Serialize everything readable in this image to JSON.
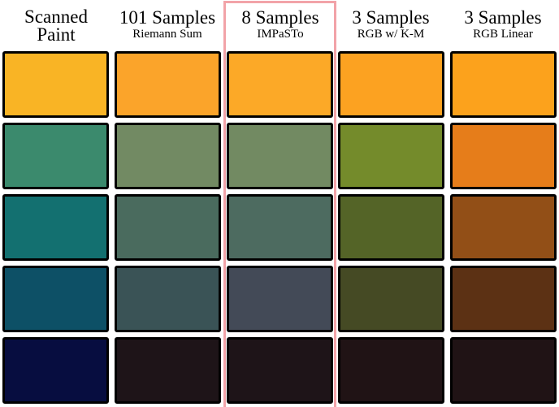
{
  "columns": [
    {
      "title": "Scanned",
      "title2": "Paint",
      "subtitle": ""
    },
    {
      "title": "101 Samples",
      "title2": "",
      "subtitle": "Riemann Sum"
    },
    {
      "title": "8 Samples",
      "title2": "",
      "subtitle": "IMPaSTo"
    },
    {
      "title": "3 Samples",
      "title2": "",
      "subtitle": "RGB w/ K-M"
    },
    {
      "title": "3 Samples",
      "title2": "",
      "subtitle": "RGB Linear"
    }
  ],
  "highlight_color": "#f2a3a8",
  "swatches": [
    [
      "#f9b425",
      "#fba42a",
      "#fca927",
      "#fca221",
      "#fca21c"
    ],
    [
      "#3b8a6d",
      "#728a63",
      "#728a62",
      "#748b2b",
      "#e67d1a"
    ],
    [
      "#137070",
      "#4a6b5e",
      "#4d6b60",
      "#546427",
      "#924f17"
    ],
    [
      "#0d5066",
      "#3a5356",
      "#434a57",
      "#454a24",
      "#5c3114"
    ],
    [
      "#070d40",
      "#1e1418",
      "#1e1418",
      "#201315",
      "#201315"
    ]
  ]
}
